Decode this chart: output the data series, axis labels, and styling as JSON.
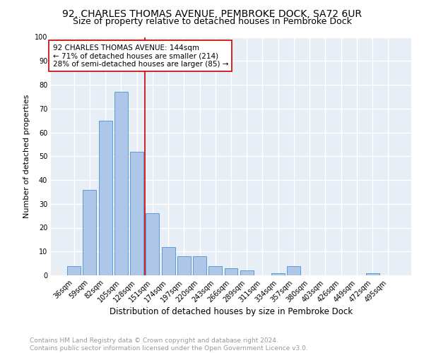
{
  "title": "92, CHARLES THOMAS AVENUE, PEMBROKE DOCK, SA72 6UR",
  "subtitle": "Size of property relative to detached houses in Pembroke Dock",
  "xlabel": "Distribution of detached houses by size in Pembroke Dock",
  "ylabel": "Number of detached properties",
  "categories": [
    "36sqm",
    "59sqm",
    "82sqm",
    "105sqm",
    "128sqm",
    "151sqm",
    "174sqm",
    "197sqm",
    "220sqm",
    "243sqm",
    "266sqm",
    "289sqm",
    "311sqm",
    "334sqm",
    "357sqm",
    "380sqm",
    "403sqm",
    "426sqm",
    "449sqm",
    "472sqm",
    "495sqm"
  ],
  "values": [
    4,
    36,
    65,
    77,
    52,
    26,
    12,
    8,
    8,
    4,
    3,
    2,
    0,
    1,
    4,
    0,
    0,
    0,
    0,
    1,
    0
  ],
  "bar_color": "#aec6e8",
  "bar_edge_color": "#5b9bd5",
  "vline_x": 4.5,
  "vline_color": "#cc0000",
  "annotation_text": "92 CHARLES THOMAS AVENUE: 144sqm\n← 71% of detached houses are smaller (214)\n28% of semi-detached houses are larger (85) →",
  "annotation_box_color": "#ffffff",
  "annotation_box_edge": "#cc0000",
  "ylim": [
    0,
    100
  ],
  "yticks": [
    0,
    10,
    20,
    30,
    40,
    50,
    60,
    70,
    80,
    90,
    100
  ],
  "background_color": "#e8eef5",
  "grid_color": "#ffffff",
  "footer": "Contains HM Land Registry data © Crown copyright and database right 2024.\nContains public sector information licensed under the Open Government Licence v3.0.",
  "title_fontsize": 10,
  "subtitle_fontsize": 9,
  "xlabel_fontsize": 8.5,
  "ylabel_fontsize": 8,
  "annotation_fontsize": 7.5,
  "tick_fontsize": 7,
  "footer_fontsize": 6.5
}
